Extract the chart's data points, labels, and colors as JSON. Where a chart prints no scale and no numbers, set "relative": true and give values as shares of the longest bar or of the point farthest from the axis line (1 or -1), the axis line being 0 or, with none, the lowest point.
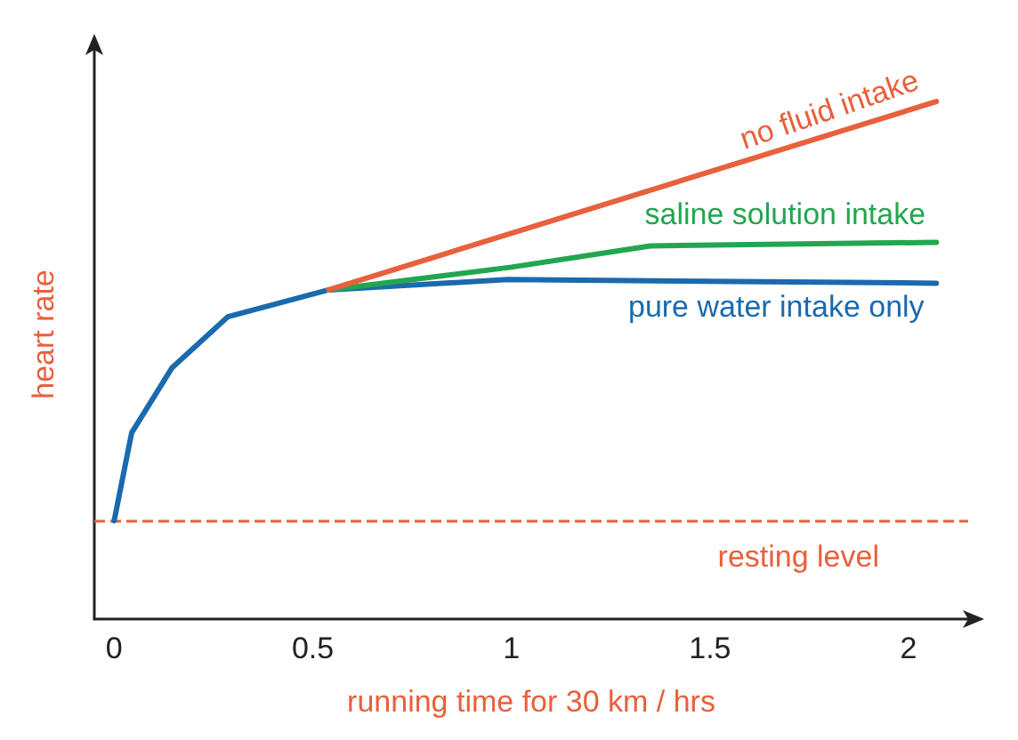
{
  "chart_data": {
    "type": "line",
    "relative": true,
    "xlabel": "running time for 30 km / hrs",
    "ylabel": "heart rate",
    "xlim": [
      -0.05,
      2.15
    ],
    "xticks": [
      0,
      0.5,
      1,
      1.5,
      2
    ],
    "tick_labels": "x",
    "grid": false,
    "legend": false,
    "marker": "none",
    "line_style": "solid",
    "series": [
      {
        "name": "no fluid intake",
        "color": "#e8603c",
        "x": [
          0.54,
          2.07
        ],
        "values": [
          0.636,
          1.0
        ]
      },
      {
        "name": "saline solution intake",
        "color": "#22a650",
        "x": [
          0.54,
          1.0,
          1.35,
          2.07
        ],
        "values": [
          0.636,
          0.68,
          0.721,
          0.728
        ]
      },
      {
        "name": "pure water intake only",
        "color": "#1a6aad",
        "x": [
          0,
          0.044,
          0.145,
          0.286,
          0.54,
          0.99,
          2.07
        ],
        "values": [
          0.19,
          0.36,
          0.485,
          0.584,
          0.636,
          0.656,
          0.649
        ]
      }
    ],
    "ref_lines": [
      {
        "axis": "y",
        "value": 0.19,
        "label": "resting level",
        "color": "#e8603c",
        "line_style": "dashed"
      }
    ]
  }
}
